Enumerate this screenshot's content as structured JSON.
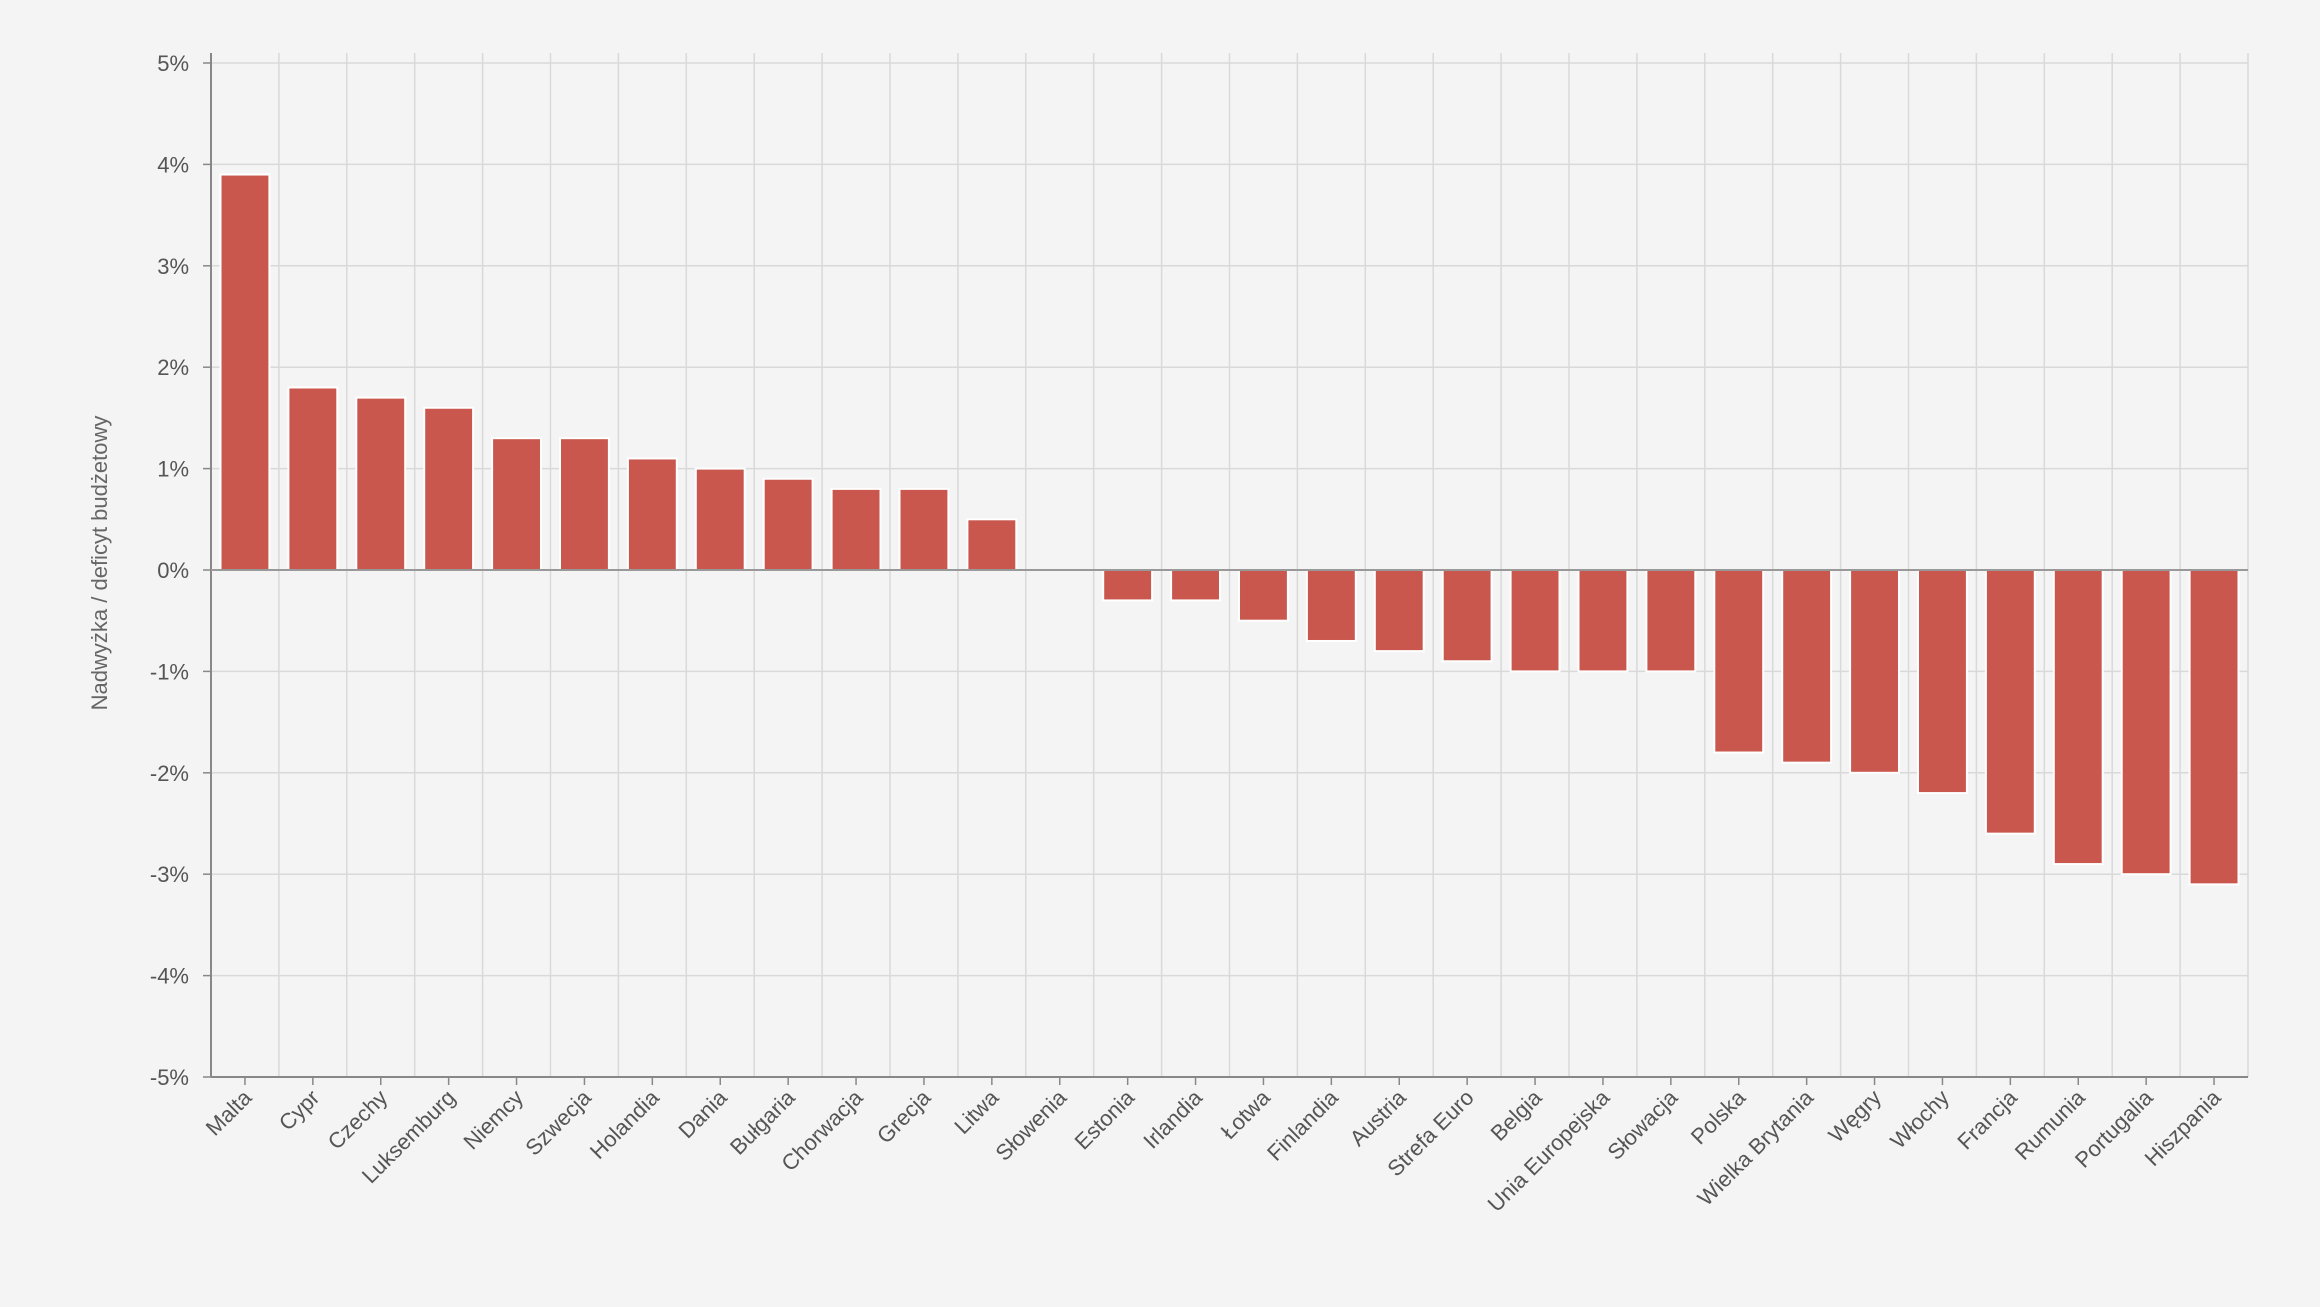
{
  "chart_data": {
    "type": "bar",
    "title": "",
    "xlabel": "",
    "ylabel": "Nadwyżka / deficyt budżetowy",
    "ylim": [
      -5,
      5
    ],
    "yticks": [
      5,
      4,
      3,
      2,
      1,
      0,
      -1,
      -2,
      -3,
      -4,
      -5
    ],
    "ytick_labels": [
      "5%",
      "4%",
      "3%",
      "2%",
      "1%",
      "0%",
      "-1%",
      "-2%",
      "-3%",
      "-4%",
      "-5%"
    ],
    "grid": true,
    "bar_color": "#c9574d",
    "categories": [
      "Malta",
      "Cypr",
      "Czechy",
      "Luksemburg",
      "Niemcy",
      "Szwecja",
      "Holandia",
      "Dania",
      "Bułgaria",
      "Chorwacja",
      "Grecja",
      "Litwa",
      "Słowenia",
      "Estonia",
      "Irlandia",
      "Łotwa",
      "Finlandia",
      "Austria",
      "Strefa Euro",
      "Belgia",
      "Unia Europejska",
      "Słowacja",
      "Polska",
      "Wielka Brytania",
      "Węgry",
      "Włochy",
      "Francja",
      "Rumunia",
      "Portugalia",
      "Hiszpania"
    ],
    "values": [
      3.9,
      1.8,
      1.7,
      1.6,
      1.3,
      1.3,
      1.1,
      1.0,
      0.9,
      0.8,
      0.8,
      0.5,
      0.0,
      -0.3,
      -0.3,
      -0.5,
      -0.7,
      -0.8,
      -0.9,
      -1.0,
      -1.0,
      -1.0,
      -1.8,
      -1.9,
      -2.0,
      -2.2,
      -2.6,
      -2.9,
      -3.0,
      -3.1
    ]
  }
}
